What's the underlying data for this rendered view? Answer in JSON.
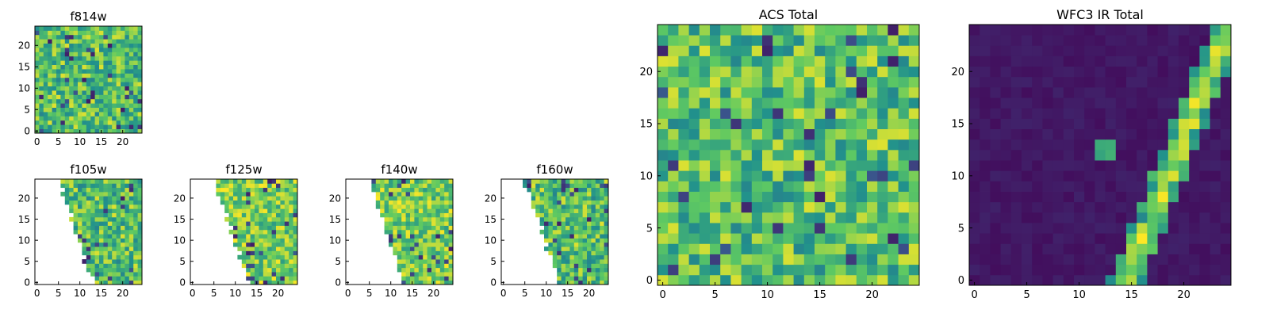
{
  "figure": {
    "background": "#ffffff"
  },
  "colormap": [
    "#440154",
    "#3b528b",
    "#21918c",
    "#5ec962",
    "#fde725"
  ],
  "chart_data": [
    {
      "id": "f814w",
      "type": "heatmap",
      "title": "f814w",
      "grid_size": 25,
      "xlim": [
        0,
        24
      ],
      "ylim": [
        0,
        24
      ],
      "x_ticks": [
        "0",
        "5",
        "10",
        "15",
        "20"
      ],
      "y_ticks": [
        "0",
        "5",
        "10",
        "15",
        "20"
      ],
      "pattern": "noise",
      "mask": "none"
    },
    {
      "id": "f105w",
      "type": "heatmap",
      "title": "f105w",
      "grid_size": 25,
      "xlim": [
        0,
        24
      ],
      "ylim": [
        0,
        24
      ],
      "x_ticks": [
        "0",
        "5",
        "10",
        "15",
        "20"
      ],
      "y_ticks": [
        "0",
        "5",
        "10",
        "15",
        "20"
      ],
      "pattern": "noise",
      "mask": "diagonal-left-blank"
    },
    {
      "id": "f125w",
      "type": "heatmap",
      "title": "f125w",
      "grid_size": 25,
      "xlim": [
        0,
        24
      ],
      "ylim": [
        0,
        24
      ],
      "x_ticks": [
        "0",
        "5",
        "10",
        "15",
        "20"
      ],
      "y_ticks": [
        "0",
        "5",
        "10",
        "15",
        "20"
      ],
      "pattern": "noise-bright",
      "mask": "diagonal-left-blank"
    },
    {
      "id": "f140w",
      "type": "heatmap",
      "title": "f140w",
      "grid_size": 25,
      "xlim": [
        0,
        24
      ],
      "ylim": [
        0,
        24
      ],
      "x_ticks": [
        "0",
        "5",
        "10",
        "15",
        "20"
      ],
      "y_ticks": [
        "0",
        "5",
        "10",
        "15",
        "20"
      ],
      "pattern": "noise-bright",
      "mask": "diagonal-left-blank"
    },
    {
      "id": "f160w",
      "type": "heatmap",
      "title": "f160w",
      "grid_size": 25,
      "xlim": [
        0,
        24
      ],
      "ylim": [
        0,
        24
      ],
      "x_ticks": [
        "0",
        "5",
        "10",
        "15",
        "20"
      ],
      "y_ticks": [
        "0",
        "5",
        "10",
        "15",
        "20"
      ],
      "pattern": "noise",
      "mask": "diagonal-left-blank"
    },
    {
      "id": "acs_total",
      "type": "heatmap",
      "title": "ACS Total",
      "grid_size": 25,
      "xlim": [
        0,
        24
      ],
      "ylim": [
        0,
        24
      ],
      "x_ticks": [
        "0",
        "5",
        "10",
        "15",
        "20"
      ],
      "y_ticks": [
        "0",
        "5",
        "10",
        "15",
        "20"
      ],
      "pattern": "noise",
      "mask": "none"
    },
    {
      "id": "wfc3_ir_total",
      "type": "heatmap",
      "title": "WFC3 IR Total",
      "grid_size": 25,
      "xlim": [
        0,
        24
      ],
      "ylim": [
        0,
        24
      ],
      "x_ticks": [
        "0",
        "5",
        "10",
        "15",
        "20"
      ],
      "y_ticks": [
        "0",
        "5",
        "10",
        "15",
        "20"
      ],
      "pattern": "streak",
      "mask": "none"
    }
  ]
}
